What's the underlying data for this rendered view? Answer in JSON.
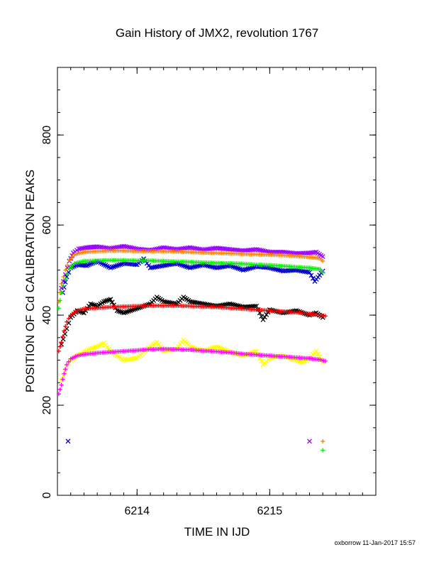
{
  "chart_data": {
    "type": "scatter",
    "title": "Gain History of JMX2, revolution 1767",
    "xlabel": "TIME IN IJD",
    "ylabel": "POSITION OF Cd CALIBRATION PEAKS",
    "xlim": [
      6213.4,
      6215.8
    ],
    "ylim": [
      0,
      950
    ],
    "xticks": [
      6214,
      6215
    ],
    "yticks": [
      0,
      200,
      400,
      600,
      800
    ],
    "grid": false,
    "legend": "none",
    "footer": "oxborrow 11-Jan-2017 15:57",
    "series": [
      {
        "marker": "x",
        "color": "#9900ff",
        "points": [
          [
            6213.43,
            460
          ],
          [
            6213.46,
            490
          ],
          [
            6213.49,
            520
          ],
          [
            6213.52,
            538
          ],
          [
            6213.56,
            547
          ],
          [
            6213.62,
            550
          ],
          [
            6213.7,
            552
          ],
          [
            6213.8,
            548
          ],
          [
            6213.9,
            553
          ],
          [
            6214.0,
            547
          ],
          [
            6214.1,
            544
          ],
          [
            6214.2,
            550
          ],
          [
            6214.3,
            546
          ],
          [
            6214.4,
            550
          ],
          [
            6214.5,
            545
          ],
          [
            6214.6,
            549
          ],
          [
            6214.7,
            546
          ],
          [
            6214.8,
            543
          ],
          [
            6214.9,
            546
          ],
          [
            6215.0,
            540
          ],
          [
            6215.1,
            540
          ],
          [
            6215.2,
            537
          ],
          [
            6215.3,
            538
          ],
          [
            6215.35,
            540
          ],
          [
            6215.4,
            530
          ],
          [
            6215.3,
            120
          ]
        ]
      },
      {
        "marker": "x",
        "color": "#0000cc",
        "points": [
          [
            6213.44,
            450
          ],
          [
            6213.47,
            485
          ],
          [
            6213.5,
            505
          ],
          [
            6213.55,
            512
          ],
          [
            6213.62,
            510
          ],
          [
            6213.7,
            520
          ],
          [
            6213.8,
            505
          ],
          [
            6213.9,
            515
          ],
          [
            6214.0,
            512
          ],
          [
            6214.05,
            525
          ],
          [
            6214.1,
            505
          ],
          [
            6214.2,
            510
          ],
          [
            6214.3,
            515
          ],
          [
            6214.4,
            505
          ],
          [
            6214.5,
            512
          ],
          [
            6214.6,
            505
          ],
          [
            6214.7,
            510
          ],
          [
            6214.8,
            500
          ],
          [
            6214.9,
            508
          ],
          [
            6215.0,
            505
          ],
          [
            6215.1,
            498
          ],
          [
            6215.2,
            500
          ],
          [
            6215.3,
            495
          ],
          [
            6215.34,
            475
          ],
          [
            6215.4,
            498
          ],
          [
            6213.48,
            120
          ]
        ]
      },
      {
        "marker": "+",
        "color": "#ff8000",
        "points": [
          [
            6213.41,
            430
          ],
          [
            6213.43,
            470
          ],
          [
            6213.46,
            500
          ],
          [
            6213.49,
            522
          ],
          [
            6213.53,
            535
          ],
          [
            6213.6,
            540
          ],
          [
            6213.7,
            542
          ],
          [
            6213.8,
            543
          ],
          [
            6213.9,
            543
          ],
          [
            6214.0,
            542
          ],
          [
            6214.1,
            542
          ],
          [
            6214.2,
            542
          ],
          [
            6214.3,
            541
          ],
          [
            6214.4,
            540
          ],
          [
            6214.5,
            539
          ],
          [
            6214.6,
            538
          ],
          [
            6214.7,
            537
          ],
          [
            6214.8,
            536
          ],
          [
            6214.9,
            535
          ],
          [
            6215.0,
            534
          ],
          [
            6215.1,
            533
          ],
          [
            6215.2,
            531
          ],
          [
            6215.3,
            529
          ],
          [
            6215.38,
            526
          ],
          [
            6215.4,
            520
          ],
          [
            6215.4,
            120
          ]
        ]
      },
      {
        "marker": "+",
        "color": "#00ee00",
        "points": [
          [
            6213.41,
            415
          ],
          [
            6213.43,
            450
          ],
          [
            6213.46,
            480
          ],
          [
            6213.49,
            503
          ],
          [
            6213.53,
            515
          ],
          [
            6213.6,
            520
          ],
          [
            6213.7,
            521
          ],
          [
            6213.8,
            522
          ],
          [
            6213.9,
            522
          ],
          [
            6214.0,
            521
          ],
          [
            6214.1,
            521
          ],
          [
            6214.2,
            520
          ],
          [
            6214.3,
            519
          ],
          [
            6214.4,
            518
          ],
          [
            6214.5,
            517
          ],
          [
            6214.6,
            516
          ],
          [
            6214.7,
            515
          ],
          [
            6214.8,
            514
          ],
          [
            6214.9,
            512
          ],
          [
            6215.0,
            511
          ],
          [
            6215.1,
            509
          ],
          [
            6215.2,
            507
          ],
          [
            6215.3,
            505
          ],
          [
            6215.38,
            502
          ],
          [
            6215.4,
            495
          ],
          [
            6215.4,
            100
          ]
        ]
      },
      {
        "marker": "x",
        "color": "#000000",
        "points": [
          [
            6213.43,
            335
          ],
          [
            6213.47,
            370
          ],
          [
            6213.5,
            395
          ],
          [
            6213.55,
            410
          ],
          [
            6213.6,
            405
          ],
          [
            6213.65,
            425
          ],
          [
            6213.7,
            420
          ],
          [
            6213.75,
            430
          ],
          [
            6213.8,
            435
          ],
          [
            6213.85,
            410
          ],
          [
            6213.9,
            405
          ],
          [
            6214.0,
            415
          ],
          [
            6214.1,
            425
          ],
          [
            6214.15,
            440
          ],
          [
            6214.2,
            430
          ],
          [
            6214.3,
            425
          ],
          [
            6214.35,
            440
          ],
          [
            6214.4,
            430
          ],
          [
            6214.5,
            425
          ],
          [
            6214.6,
            420
          ],
          [
            6214.7,
            425
          ],
          [
            6214.8,
            418
          ],
          [
            6214.9,
            420
          ],
          [
            6214.95,
            390
          ],
          [
            6215.0,
            412
          ],
          [
            6215.1,
            405
          ],
          [
            6215.2,
            410
          ],
          [
            6215.3,
            400
          ],
          [
            6215.35,
            405
          ],
          [
            6215.4,
            395
          ]
        ]
      },
      {
        "marker": "+",
        "color": "#ee0000",
        "points": [
          [
            6213.41,
            320
          ],
          [
            6213.43,
            340
          ],
          [
            6213.45,
            365
          ],
          [
            6213.47,
            385
          ],
          [
            6213.5,
            400
          ],
          [
            6213.55,
            410
          ],
          [
            6213.6,
            414
          ],
          [
            6213.7,
            416
          ],
          [
            6213.8,
            418
          ],
          [
            6213.9,
            419
          ],
          [
            6214.0,
            420
          ],
          [
            6214.1,
            421
          ],
          [
            6214.2,
            421
          ],
          [
            6214.3,
            421
          ],
          [
            6214.4,
            420
          ],
          [
            6214.5,
            419
          ],
          [
            6214.6,
            418
          ],
          [
            6214.7,
            416
          ],
          [
            6214.8,
            414
          ],
          [
            6214.9,
            412
          ],
          [
            6215.0,
            410
          ],
          [
            6215.1,
            408
          ],
          [
            6215.2,
            406
          ],
          [
            6215.3,
            403
          ],
          [
            6215.38,
            400
          ],
          [
            6215.42,
            398
          ]
        ]
      },
      {
        "marker": "x",
        "color": "#ffff00",
        "points": [
          [
            6213.43,
            255
          ],
          [
            6213.47,
            285
          ],
          [
            6213.5,
            300
          ],
          [
            6213.55,
            310
          ],
          [
            6213.6,
            318
          ],
          [
            6213.65,
            325
          ],
          [
            6213.7,
            330
          ],
          [
            6213.75,
            338
          ],
          [
            6213.8,
            320
          ],
          [
            6213.85,
            310
          ],
          [
            6213.9,
            300
          ],
          [
            6214.0,
            305
          ],
          [
            6214.1,
            330
          ],
          [
            6214.15,
            340
          ],
          [
            6214.2,
            320
          ],
          [
            6214.3,
            325
          ],
          [
            6214.35,
            345
          ],
          [
            6214.4,
            330
          ],
          [
            6214.5,
            320
          ],
          [
            6214.6,
            330
          ],
          [
            6214.7,
            318
          ],
          [
            6214.8,
            310
          ],
          [
            6214.9,
            320
          ],
          [
            6214.95,
            290
          ],
          [
            6215.0,
            305
          ],
          [
            6215.1,
            310
          ],
          [
            6215.2,
            300
          ],
          [
            6215.25,
            295
          ],
          [
            6215.3,
            305
          ],
          [
            6215.35,
            320
          ],
          [
            6215.4,
            295
          ]
        ]
      },
      {
        "marker": "+",
        "color": "#ff00ff",
        "points": [
          [
            6213.41,
            225
          ],
          [
            6213.43,
            245
          ],
          [
            6213.45,
            270
          ],
          [
            6213.47,
            290
          ],
          [
            6213.5,
            303
          ],
          [
            6213.55,
            310
          ],
          [
            6213.6,
            313
          ],
          [
            6213.7,
            316
          ],
          [
            6213.8,
            318
          ],
          [
            6213.9,
            320
          ],
          [
            6214.0,
            322
          ],
          [
            6214.1,
            324
          ],
          [
            6214.2,
            325
          ],
          [
            6214.3,
            324
          ],
          [
            6214.4,
            323
          ],
          [
            6214.5,
            321
          ],
          [
            6214.6,
            319
          ],
          [
            6214.7,
            317
          ],
          [
            6214.8,
            314
          ],
          [
            6214.9,
            312
          ],
          [
            6215.0,
            310
          ],
          [
            6215.1,
            308
          ],
          [
            6215.2,
            306
          ],
          [
            6215.3,
            304
          ],
          [
            6215.38,
            301
          ],
          [
            6215.42,
            298
          ]
        ]
      }
    ]
  }
}
